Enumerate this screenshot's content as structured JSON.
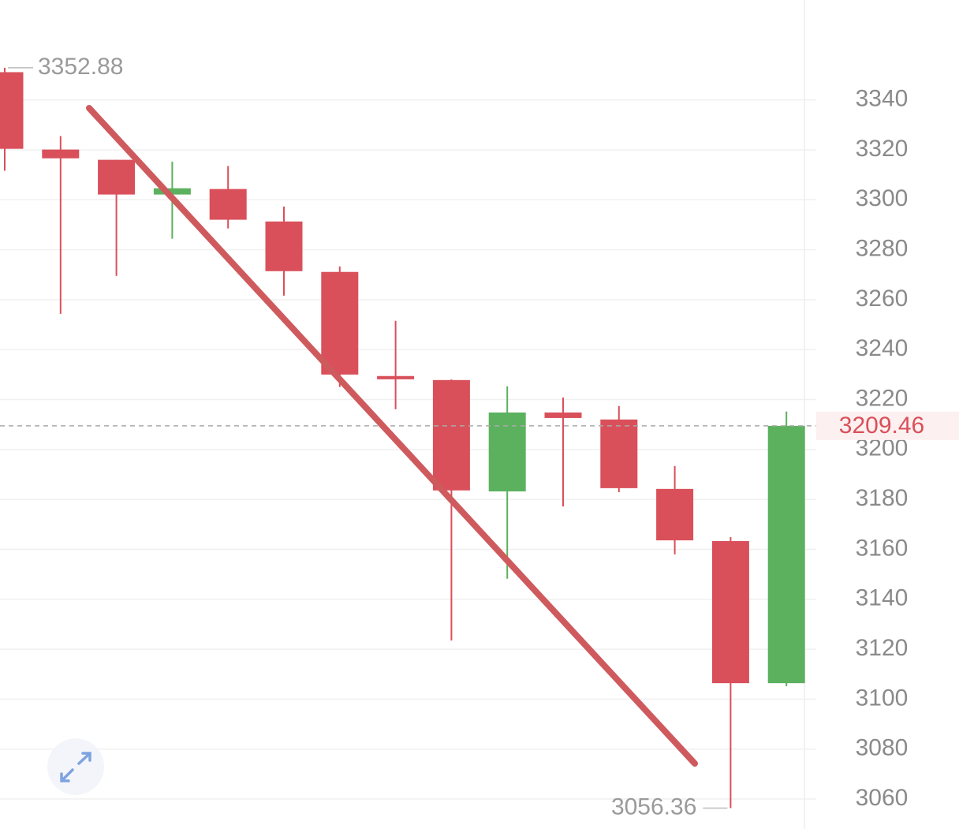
{
  "chart_data": {
    "type": "candlestick",
    "open": [
      3351.1,
      3320.1,
      3316.0,
      3302.1,
      3304.3,
      3291.3,
      3271.1,
      3229.4,
      3227.8,
      3183.2,
      3214.8,
      3212.0,
      3184.2,
      3163.3,
      3106.4
    ],
    "high": [
      3352.88,
      3325.5,
      3316.0,
      3315.3,
      3313.5,
      3297.3,
      3273.3,
      3251.5,
      3228.0,
      3225.3,
      3220.8,
      3217.4,
      3193.4,
      3164.9,
      3215.2
    ],
    "low": [
      3311.6,
      3254.3,
      3269.5,
      3284.4,
      3288.5,
      3261.6,
      3225.0,
      3216.1,
      3123.5,
      3148.2,
      3177.2,
      3182.9,
      3158.0,
      3056.36,
      3105.2
    ],
    "close": [
      3320.4,
      3316.6,
      3302.1,
      3304.6,
      3292.0,
      3271.4,
      3230.0,
      3228.1,
      3183.6,
      3214.8,
      3212.6,
      3184.5,
      3163.6,
      3106.4,
      3209.46
    ],
    "up_color": "#5cb15f",
    "down_color": "#d9505a",
    "ylim": [
      3048,
      3380
    ],
    "yticks": [
      3060,
      3080,
      3100,
      3120,
      3140,
      3160,
      3180,
      3200,
      3220,
      3240,
      3260,
      3280,
      3300,
      3320,
      3340
    ],
    "grid": true
  }
}
